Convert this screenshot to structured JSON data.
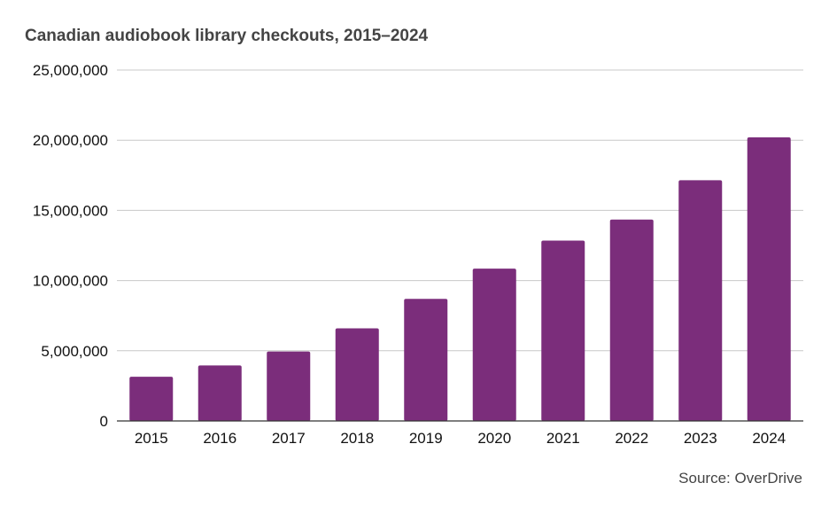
{
  "chart_data": {
    "type": "bar",
    "title": "Canadian audiobook library checkouts, 2015–2024",
    "xlabel": "",
    "ylabel": "",
    "categories": [
      "2015",
      "2016",
      "2017",
      "2018",
      "2019",
      "2020",
      "2021",
      "2022",
      "2023",
      "2024"
    ],
    "series": [
      {
        "values": [
          3150000,
          3950000,
          4950000,
          6600000,
          8700000,
          10850000,
          12850000,
          14350000,
          17150000,
          20200000
        ],
        "color": "#7b2d7b"
      }
    ],
    "ylim": [
      0,
      25000000
    ],
    "yticks": [
      0,
      5000000,
      10000000,
      15000000,
      20000000,
      25000000
    ],
    "ytick_labels": [
      "0",
      "5,000,000",
      "10,000,000",
      "15,000,000",
      "20,000,000",
      "25,000,000"
    ],
    "grid": true,
    "legend": "none"
  },
  "source": "Source: OverDrive"
}
